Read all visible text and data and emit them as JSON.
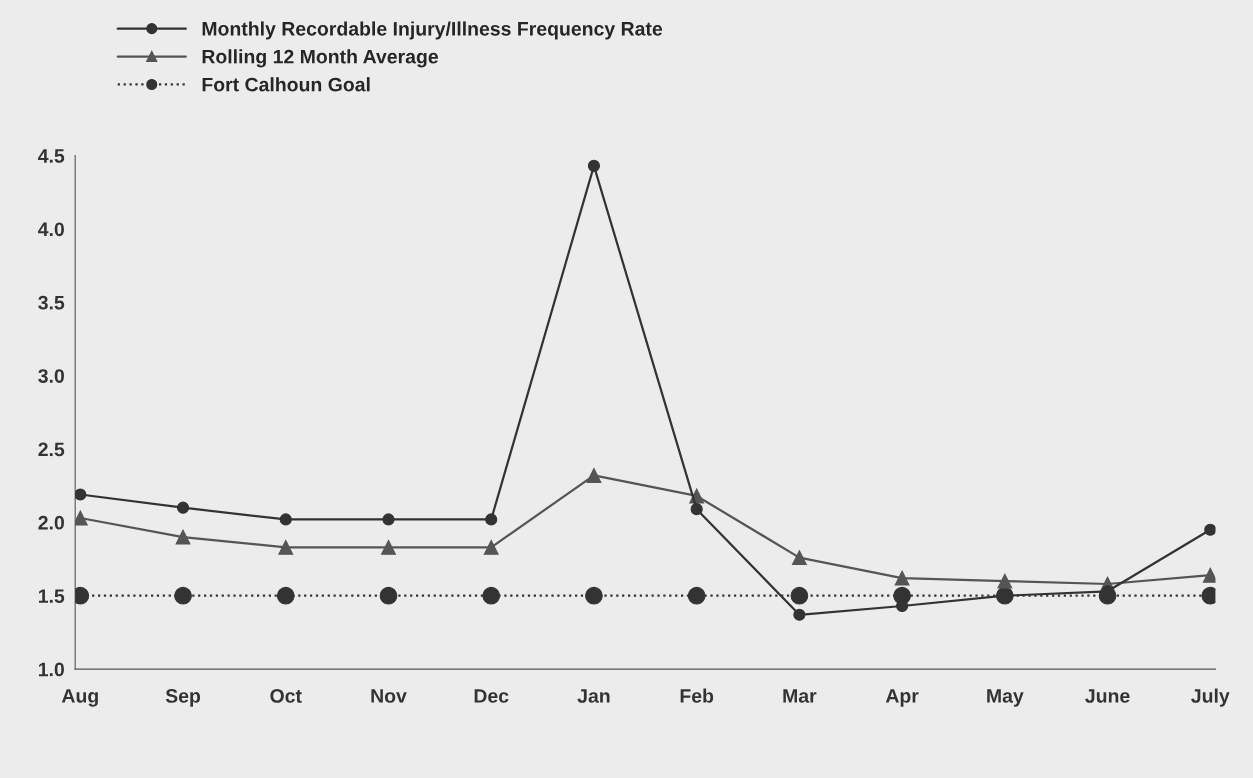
{
  "chart_data": {
    "type": "line",
    "categories": [
      "Aug",
      "Sep",
      "Oct",
      "Nov",
      "Dec",
      "Jan",
      "Feb",
      "Mar",
      "Apr",
      "May",
      "June",
      "July"
    ],
    "series": [
      {
        "name": "Monthly Recordable Injury/Illness Frequency Rate",
        "color": "#333333",
        "marker": "circle",
        "line_style": "solid",
        "values": [
          2.19,
          2.1,
          2.02,
          2.02,
          2.02,
          4.43,
          2.09,
          1.37,
          1.43,
          1.5,
          1.53,
          1.95
        ]
      },
      {
        "name": "Rolling 12 Month Average",
        "color": "#555555",
        "marker": "triangle",
        "line_style": "solid",
        "values": [
          2.03,
          1.9,
          1.83,
          1.83,
          1.83,
          2.32,
          2.18,
          1.76,
          1.62,
          1.6,
          1.58,
          1.64
        ]
      },
      {
        "name": "Fort Calhoun Goal",
        "color": "#333333",
        "marker": "circle",
        "line_style": "dotted",
        "values": [
          1.5,
          1.5,
          1.5,
          1.5,
          1.5,
          1.5,
          1.5,
          1.5,
          1.5,
          1.5,
          1.5,
          1.5
        ]
      }
    ],
    "ylim": [
      1.0,
      4.5
    ],
    "yticks": [
      {
        "value": 1.0,
        "label": "1.0"
      },
      {
        "value": 1.5,
        "label": "1.5"
      },
      {
        "value": 2.0,
        "label": "2.0"
      },
      {
        "value": 2.5,
        "label": "2.5"
      },
      {
        "value": 3.0,
        "label": "3.0"
      },
      {
        "value": 3.5,
        "label": "3.5"
      },
      {
        "value": 4.0,
        "label": "4.0"
      },
      {
        "value": 4.5,
        "label": "4.5"
      }
    ],
    "grid": false,
    "legend": "top left"
  }
}
